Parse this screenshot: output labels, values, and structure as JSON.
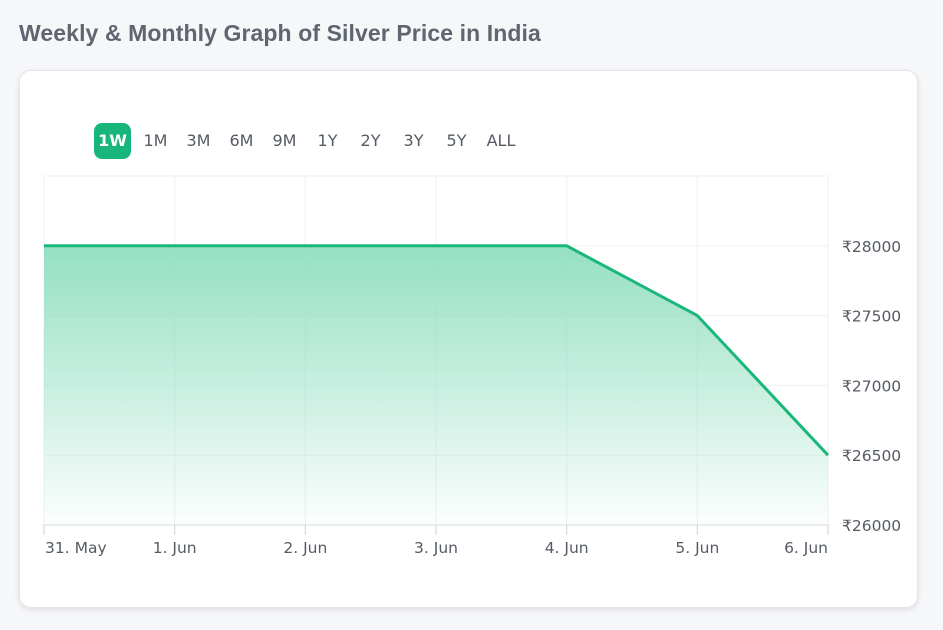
{
  "page": {
    "title": "Weekly & Monthly Graph of Silver Price in India"
  },
  "range_selector": {
    "buttons": [
      "1W",
      "1M",
      "3M",
      "6M",
      "9M",
      "1Y",
      "2Y",
      "3Y",
      "5Y",
      "ALL"
    ],
    "active": "1W"
  },
  "colors": {
    "accent": "#18b67a",
    "line": "#1bb77a",
    "fill_top": "#8fdec0",
    "grid": "#eef0f2"
  },
  "chart_data": {
    "type": "area",
    "title": "",
    "xlabel": "",
    "ylabel": "",
    "x": [
      "31. May",
      "1. Jun",
      "2. Jun",
      "3. Jun",
      "4. Jun",
      "5. Jun",
      "6. Jun"
    ],
    "series": [
      {
        "values": [
          28000,
          28000,
          28000,
          28000,
          28000,
          27500,
          26500
        ]
      }
    ],
    "y_ticks": [
      26000,
      26500,
      27000,
      27500,
      28000
    ],
    "y_tick_prefix": "₹",
    "ylim": [
      26000,
      28500
    ],
    "y_axis_side": "right",
    "grid": true,
    "legend": "none"
  }
}
